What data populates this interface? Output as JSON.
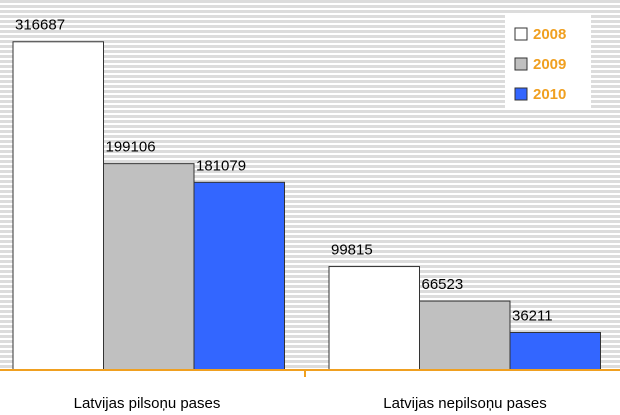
{
  "chart_data": {
    "type": "bar",
    "categories": [
      "Latvijas pilsoņu pases",
      "Latvijas nepilsoņu pases"
    ],
    "series": [
      {
        "name": "2008",
        "color": "#ffffff",
        "values": [
          316687,
          99815
        ]
      },
      {
        "name": "2009",
        "color": "#c0c0c0",
        "values": [
          199106,
          66523
        ]
      },
      {
        "name": "2010",
        "color": "#3366ff",
        "values": [
          181079,
          36211
        ]
      }
    ],
    "ylim": [
      0,
      357000
    ],
    "legend": "upper right"
  }
}
